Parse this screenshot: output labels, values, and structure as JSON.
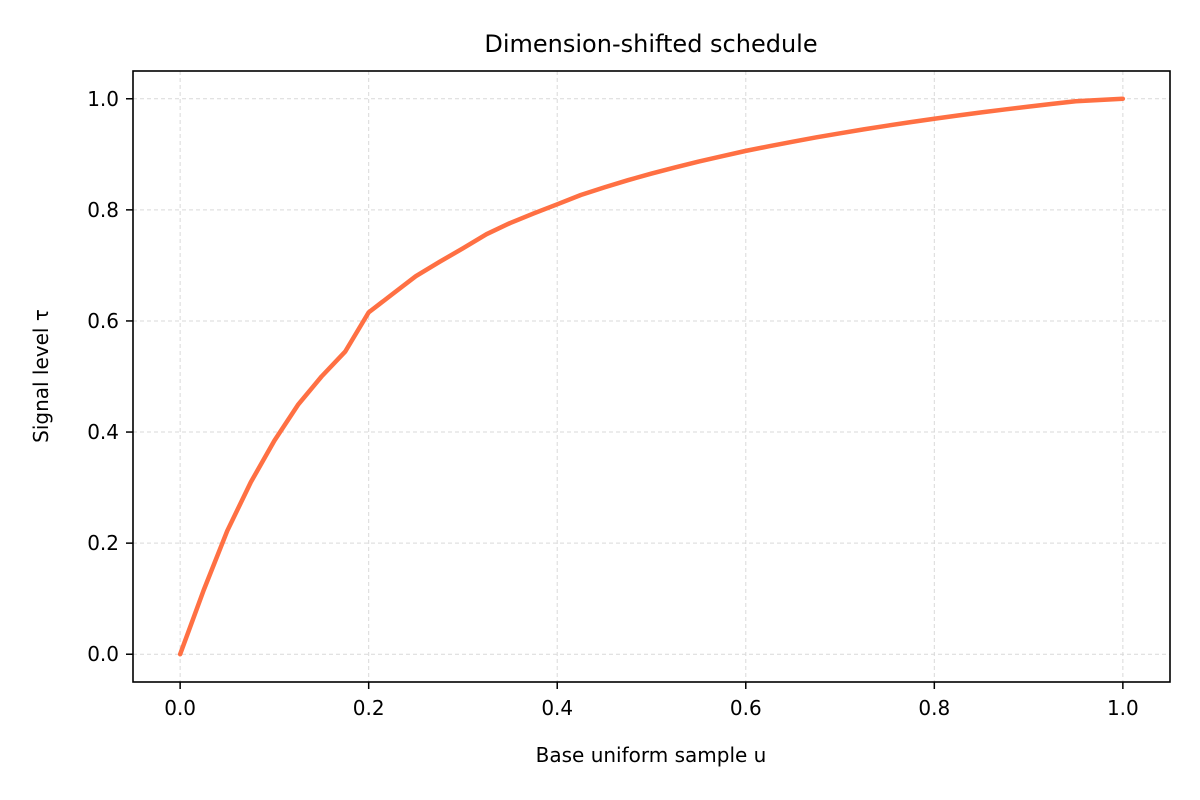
{
  "chart_data": {
    "type": "line",
    "title": "Dimension-shifted schedule",
    "xlabel": "Base uniform sample u",
    "ylabel": "Signal level τ",
    "xlim": [
      -0.05,
      1.05
    ],
    "ylim": [
      -0.05,
      1.05
    ],
    "xticks": [
      0.0,
      0.2,
      0.4,
      0.6,
      0.8,
      1.0
    ],
    "xtick_labels": [
      "0.0",
      "0.2",
      "0.4",
      "0.6",
      "0.8",
      "1.0"
    ],
    "yticks": [
      0.0,
      0.2,
      0.4,
      0.6,
      0.8,
      1.0
    ],
    "ytick_labels": [
      "0.0",
      "0.2",
      "0.4",
      "0.6",
      "0.8",
      "1.0"
    ],
    "grid": true,
    "series": [
      {
        "color": "#ff7043",
        "x": [
          0.0,
          0.025,
          0.05,
          0.075,
          0.1,
          0.125,
          0.15,
          0.175,
          0.2,
          0.225,
          0.25,
          0.275,
          0.3,
          0.325,
          0.35,
          0.375,
          0.4,
          0.425,
          0.45,
          0.475,
          0.5,
          0.525,
          0.55,
          0.575,
          0.6,
          0.625,
          0.65,
          0.675,
          0.7,
          0.725,
          0.75,
          0.775,
          0.8,
          0.825,
          0.85,
          0.875,
          0.9,
          0.925,
          0.95,
          0.975,
          1.0
        ],
        "y": [
          0.0,
          0.1154,
          0.2222,
          0.3099,
          0.3846,
          0.449,
          0.5,
          0.5446,
          0.6154,
          0.6481,
          0.6806,
          0.7062,
          0.7308,
          0.7562,
          0.7763,
          0.7936,
          0.81,
          0.8267,
          0.8405,
          0.8534,
          0.8654,
          0.8764,
          0.887,
          0.8966,
          0.9062,
          0.9146,
          0.9228,
          0.9306,
          0.9378,
          0.9449,
          0.9516,
          0.958,
          0.964,
          0.9699,
          0.9755,
          0.9808,
          0.9859,
          0.9908,
          0.9955,
          0.9978,
          1.0
        ]
      }
    ]
  }
}
